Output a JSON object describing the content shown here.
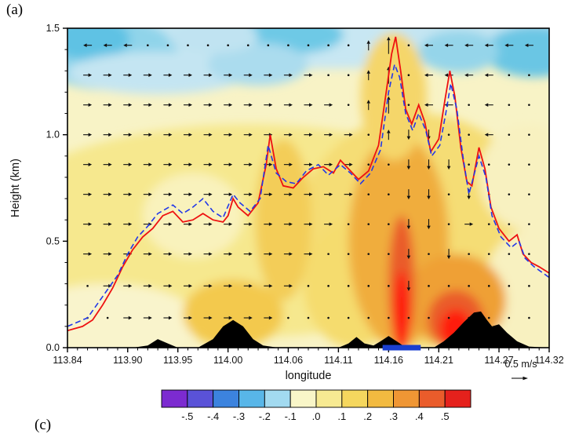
{
  "panel_labels": {
    "top": "(a)",
    "bottom": "(c)"
  },
  "chart_data": {
    "type": "heatmap",
    "title": "",
    "xlabel": "longitude",
    "ylabel": "Height (km)",
    "xlim": [
      113.84,
      114.32
    ],
    "ylim": [
      0,
      1.5
    ],
    "x_tick_values": [
      113.84,
      113.9,
      113.95,
      114.0,
      114.06,
      114.11,
      114.16,
      114.21,
      114.27,
      114.32
    ],
    "x_tick_labels": [
      "113.84",
      "113.90",
      "113.95",
      "114.00",
      "114.06",
      "114.11",
      "114.16",
      "114.21",
      "114.27",
      "114.32"
    ],
    "y_tick_values": [
      0,
      0.5,
      1.0,
      1.5
    ],
    "y_tick_labels": [
      "0.0",
      "0.5",
      "1.0",
      "1.5"
    ],
    "x_minor_step": 0.01,
    "y_minor_step": 0.1,
    "reference_vector": {
      "label": "0.5 m/s",
      "speed_m_s": 0.5
    },
    "colorbar": {
      "tick_labels": [
        "-.5",
        "-.4",
        "-.3",
        "-.2",
        "-.1",
        ".0",
        ".1",
        ".2",
        ".3",
        ".4",
        ".5"
      ],
      "segment_colors": [
        "#7c2bd0",
        "#5a52d8",
        "#3c83de",
        "#58b6e8",
        "#a2daf0",
        "#f9f6c8",
        "#f7ea92",
        "#f5d75e",
        "#f2ba40",
        "#ef9634",
        "#ea5c2b",
        "#e5211c"
      ]
    },
    "field": {
      "base_color": "#f8f3c6",
      "blobs": [
        [
          114.02,
          0.55,
          0.26,
          0.5,
          "#f6e88e"
        ],
        [
          114.19,
          0.55,
          0.12,
          0.55,
          "#f5dd74"
        ],
        [
          113.88,
          0.12,
          0.09,
          0.18,
          "#f9f4cc"
        ],
        [
          113.965,
          0.62,
          0.05,
          0.2,
          "#f9f2bc"
        ],
        [
          114.305,
          0.28,
          0.05,
          0.28,
          "#f8f1c0"
        ],
        [
          114.3,
          0.8,
          0.05,
          0.25,
          "#f8f1c0"
        ],
        [
          114.005,
          0.16,
          0.05,
          0.16,
          "#f3c94e"
        ],
        [
          114.055,
          0.6,
          0.028,
          0.38,
          "#f3cd58"
        ],
        [
          114.125,
          0.3,
          0.05,
          0.3,
          "#f5dc6e"
        ],
        [
          114.17,
          0.5,
          0.05,
          0.5,
          "#f0ad3c"
        ],
        [
          114.227,
          0.22,
          0.05,
          0.22,
          "#efa035"
        ],
        [
          114.173,
          0.3,
          0.013,
          0.32,
          "#ea5c2b"
        ],
        [
          114.173,
          0.17,
          0.008,
          0.19,
          "#ff1c10"
        ],
        [
          114.227,
          0.13,
          0.028,
          0.14,
          "#ea5c2b"
        ],
        [
          114.227,
          0.09,
          0.016,
          0.09,
          "#ff1c10"
        ],
        [
          114.08,
          1.48,
          0.33,
          0.17,
          "#c8e7f3"
        ],
        [
          113.88,
          1.38,
          0.07,
          0.17,
          "#90d4ea"
        ],
        [
          113.862,
          1.45,
          0.04,
          0.1,
          "#5fc2e4"
        ],
        [
          113.93,
          1.29,
          0.09,
          0.1,
          "#c4e5f2"
        ],
        [
          114.065,
          1.47,
          0.05,
          0.09,
          "#6ec9e6"
        ],
        [
          114.03,
          1.33,
          0.05,
          0.1,
          "#abdcee"
        ],
        [
          114.26,
          1.45,
          0.1,
          0.12,
          "#c4e5f2"
        ],
        [
          114.305,
          1.39,
          0.05,
          0.12,
          "#6ac6e4"
        ],
        [
          114.23,
          1.39,
          0.04,
          0.1,
          "#95d5ea"
        ],
        [
          113.985,
          1.46,
          0.045,
          0.08,
          "#c0e3f1"
        ],
        [
          114.165,
          1.18,
          0.033,
          0.3,
          "#f5d66a"
        ]
      ]
    },
    "vectors": {
      "color": "#111111",
      "x_start": 113.86,
      "x_step": 0.02,
      "legend": "r/l=east/west, u/d=up/down, .=calm",
      "rows": [
        {
          "height": 1.42,
          "pattern": "lll...........uU.llllll"
        },
        {
          "height": 1.28,
          "pattern": "rrrrrrrrrrrr..uU.llll.."
        },
        {
          "height": 1.14,
          "pattern": "rrrrrrrrrrrrr.uU.ll.l.."
        },
        {
          "height": 1.0,
          "pattern": "rrrrrrrrrrrrrr.udd..l.."
        },
        {
          "height": 0.86,
          "pattern": "rrrrrrrrrrrrrr..ddd...."
        },
        {
          "height": 0.72,
          "pattern": "rrrrrrrrrrrrrr..dd.d..."
        },
        {
          "height": 0.58,
          "pattern": "rrrrrrrrrrrrr...dd.r..."
        },
        {
          "height": 0.44,
          "pattern": "rrrrrrrrrrrr....d.d...."
        },
        {
          "height": 0.29,
          "pattern": ".rrrrrrrrrr.....d......"
        },
        {
          "height": 0.14,
          "pattern": "..rrrrrrrr............."
        }
      ]
    },
    "lines": [
      {
        "name": "pbl-height-red-solid",
        "color": "#ee1111",
        "style": "solid",
        "width": 1.8,
        "points": [
          [
            113.84,
            0.08
          ],
          [
            113.855,
            0.1
          ],
          [
            113.865,
            0.13
          ],
          [
            113.875,
            0.2
          ],
          [
            113.885,
            0.28
          ],
          [
            113.895,
            0.38
          ],
          [
            113.905,
            0.46
          ],
          [
            113.915,
            0.52
          ],
          [
            113.925,
            0.56
          ],
          [
            113.935,
            0.62
          ],
          [
            113.945,
            0.64
          ],
          [
            113.955,
            0.59
          ],
          [
            113.965,
            0.6
          ],
          [
            113.975,
            0.63
          ],
          [
            113.985,
            0.6
          ],
          [
            113.995,
            0.59
          ],
          [
            114.0,
            0.62
          ],
          [
            114.005,
            0.7
          ],
          [
            114.01,
            0.66
          ],
          [
            114.02,
            0.62
          ],
          [
            114.03,
            0.68
          ],
          [
            114.038,
            0.86
          ],
          [
            114.042,
            1.0
          ],
          [
            114.048,
            0.84
          ],
          [
            114.055,
            0.76
          ],
          [
            114.065,
            0.75
          ],
          [
            114.075,
            0.8
          ],
          [
            114.085,
            0.84
          ],
          [
            114.095,
            0.85
          ],
          [
            114.105,
            0.82
          ],
          [
            114.112,
            0.88
          ],
          [
            114.12,
            0.84
          ],
          [
            114.13,
            0.79
          ],
          [
            114.14,
            0.83
          ],
          [
            114.15,
            0.95
          ],
          [
            114.157,
            1.18
          ],
          [
            114.163,
            1.38
          ],
          [
            114.167,
            1.46
          ],
          [
            114.172,
            1.3
          ],
          [
            114.177,
            1.12
          ],
          [
            114.183,
            1.05
          ],
          [
            114.19,
            1.14
          ],
          [
            114.196,
            1.06
          ],
          [
            114.202,
            0.92
          ],
          [
            114.21,
            0.98
          ],
          [
            114.216,
            1.16
          ],
          [
            114.221,
            1.3
          ],
          [
            114.226,
            1.18
          ],
          [
            114.232,
            0.94
          ],
          [
            114.238,
            0.78
          ],
          [
            114.243,
            0.76
          ],
          [
            114.25,
            0.94
          ],
          [
            114.256,
            0.84
          ],
          [
            114.262,
            0.66
          ],
          [
            114.27,
            0.56
          ],
          [
            114.28,
            0.5
          ],
          [
            114.288,
            0.53
          ],
          [
            114.294,
            0.44
          ],
          [
            114.302,
            0.4
          ],
          [
            114.31,
            0.38
          ],
          [
            114.32,
            0.35
          ]
        ]
      },
      {
        "name": "pbl-height-blue-dashed",
        "color": "#2238e8",
        "style": "dashed",
        "width": 1.6,
        "points": [
          [
            113.84,
            0.1
          ],
          [
            113.86,
            0.14
          ],
          [
            113.875,
            0.24
          ],
          [
            113.89,
            0.34
          ],
          [
            113.9,
            0.44
          ],
          [
            113.91,
            0.52
          ],
          [
            113.92,
            0.57
          ],
          [
            113.93,
            0.63
          ],
          [
            113.945,
            0.67
          ],
          [
            113.955,
            0.63
          ],
          [
            113.965,
            0.66
          ],
          [
            113.975,
            0.7
          ],
          [
            113.985,
            0.64
          ],
          [
            113.995,
            0.61
          ],
          [
            114.005,
            0.72
          ],
          [
            114.012,
            0.68
          ],
          [
            114.022,
            0.64
          ],
          [
            114.032,
            0.7
          ],
          [
            114.04,
            0.95
          ],
          [
            114.048,
            0.82
          ],
          [
            114.058,
            0.78
          ],
          [
            114.068,
            0.77
          ],
          [
            114.078,
            0.83
          ],
          [
            114.09,
            0.86
          ],
          [
            114.1,
            0.81
          ],
          [
            114.112,
            0.86
          ],
          [
            114.122,
            0.82
          ],
          [
            114.132,
            0.77
          ],
          [
            114.142,
            0.82
          ],
          [
            114.152,
            0.93
          ],
          [
            114.16,
            1.2
          ],
          [
            114.166,
            1.33
          ],
          [
            114.171,
            1.27
          ],
          [
            114.177,
            1.1
          ],
          [
            114.184,
            1.02
          ],
          [
            114.19,
            1.1
          ],
          [
            114.197,
            1.02
          ],
          [
            114.203,
            0.9
          ],
          [
            114.211,
            0.95
          ],
          [
            114.217,
            1.1
          ],
          [
            114.222,
            1.24
          ],
          [
            114.228,
            1.12
          ],
          [
            114.234,
            0.9
          ],
          [
            114.24,
            0.72
          ],
          [
            114.25,
            0.9
          ],
          [
            114.257,
            0.8
          ],
          [
            114.263,
            0.62
          ],
          [
            114.272,
            0.52
          ],
          [
            114.282,
            0.47
          ],
          [
            114.29,
            0.5
          ],
          [
            114.296,
            0.42
          ],
          [
            114.305,
            0.38
          ],
          [
            114.32,
            0.33
          ]
        ]
      }
    ],
    "terrain": {
      "color": "#000000",
      "points": [
        [
          113.84,
          0
        ],
        [
          113.905,
          0
        ],
        [
          113.92,
          0.01
        ],
        [
          113.93,
          0.04
        ],
        [
          113.94,
          0.02
        ],
        [
          113.95,
          0
        ],
        [
          113.97,
          0
        ],
        [
          113.985,
          0.04
        ],
        [
          113.995,
          0.1
        ],
        [
          114.005,
          0.13
        ],
        [
          114.015,
          0.1
        ],
        [
          114.025,
          0.04
        ],
        [
          114.035,
          0.01
        ],
        [
          114.05,
          0
        ],
        [
          114.11,
          0
        ],
        [
          114.12,
          0.02
        ],
        [
          114.128,
          0.05
        ],
        [
          114.136,
          0.02
        ],
        [
          114.145,
          0.01
        ],
        [
          114.152,
          0.03
        ],
        [
          114.16,
          0.055
        ],
        [
          114.168,
          0.03
        ],
        [
          114.176,
          0.005
        ],
        [
          114.19,
          0
        ],
        [
          114.205,
          0
        ],
        [
          114.215,
          0.03
        ],
        [
          114.225,
          0.07
        ],
        [
          114.235,
          0.12
        ],
        [
          114.245,
          0.165
        ],
        [
          114.252,
          0.17
        ],
        [
          114.258,
          0.13
        ],
        [
          114.263,
          0.1
        ],
        [
          114.27,
          0.11
        ],
        [
          114.278,
          0.07
        ],
        [
          114.288,
          0.03
        ],
        [
          114.3,
          0.005
        ],
        [
          114.32,
          0
        ]
      ]
    },
    "surface_marker": {
      "color": "#1a3fd0",
      "x_start": 114.154,
      "x_end": 114.192
    }
  }
}
